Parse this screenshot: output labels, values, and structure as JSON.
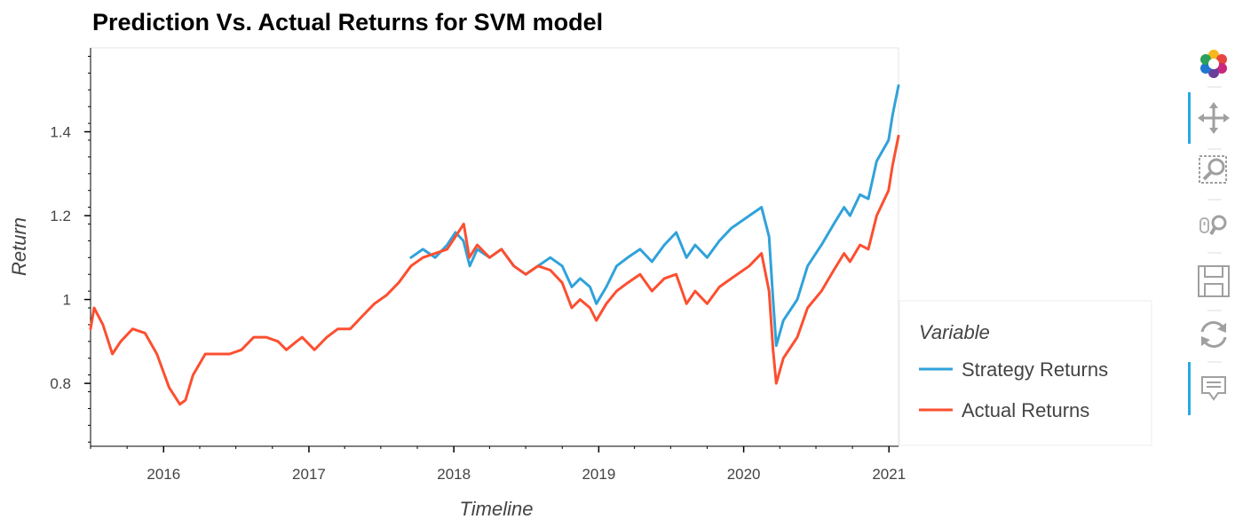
{
  "chart_data": {
    "type": "line",
    "title": "Prediction Vs. Actual Returns for SVM model",
    "xlabel": "Timeline",
    "ylabel": "Return",
    "x_range": [
      "2015-07-01",
      "2021-01-25"
    ],
    "ylim": [
      0.65,
      1.6
    ],
    "x_ticks": [
      {
        "date": "2016-01-01",
        "label": "2016"
      },
      {
        "date": "2017-01-01",
        "label": "2017"
      },
      {
        "date": "2018-01-01",
        "label": "2018"
      },
      {
        "date": "2019-01-01",
        "label": "2019"
      },
      {
        "date": "2020-01-01",
        "label": "2020"
      },
      {
        "date": "2021-01-01",
        "label": "2021"
      }
    ],
    "y_ticks": [
      {
        "value": 0.8,
        "label": "0.8"
      },
      {
        "value": 1.0,
        "label": "1"
      },
      {
        "value": 1.2,
        "label": "1.2"
      },
      {
        "value": 1.4,
        "label": "1.4"
      }
    ],
    "legend": {
      "title": "Variable",
      "position": "right"
    },
    "series": [
      {
        "name": "Strategy Returns",
        "color": "#30a2da",
        "points": [
          [
            "2017-09-15",
            1.1
          ],
          [
            "2017-10-15",
            1.12
          ],
          [
            "2017-11-15",
            1.1
          ],
          [
            "2017-12-15",
            1.13
          ],
          [
            "2018-01-05",
            1.16
          ],
          [
            "2018-01-25",
            1.14
          ],
          [
            "2018-02-10",
            1.08
          ],
          [
            "2018-03-01",
            1.12
          ],
          [
            "2018-04-01",
            1.1
          ],
          [
            "2018-05-01",
            1.12
          ],
          [
            "2018-06-01",
            1.08
          ],
          [
            "2018-07-01",
            1.06
          ],
          [
            "2018-08-01",
            1.08
          ],
          [
            "2018-09-01",
            1.1
          ],
          [
            "2018-10-01",
            1.08
          ],
          [
            "2018-10-25",
            1.03
          ],
          [
            "2018-11-15",
            1.05
          ],
          [
            "2018-12-10",
            1.03
          ],
          [
            "2018-12-26",
            0.99
          ],
          [
            "2019-01-20",
            1.03
          ],
          [
            "2019-02-15",
            1.08
          ],
          [
            "2019-03-15",
            1.1
          ],
          [
            "2019-04-15",
            1.12
          ],
          [
            "2019-05-15",
            1.09
          ],
          [
            "2019-06-15",
            1.13
          ],
          [
            "2019-07-15",
            1.16
          ],
          [
            "2019-08-10",
            1.1
          ],
          [
            "2019-09-01",
            1.13
          ],
          [
            "2019-10-01",
            1.1
          ],
          [
            "2019-11-01",
            1.14
          ],
          [
            "2019-12-01",
            1.17
          ],
          [
            "2020-01-15",
            1.2
          ],
          [
            "2020-02-15",
            1.22
          ],
          [
            "2020-03-05",
            1.15
          ],
          [
            "2020-03-15",
            1.0
          ],
          [
            "2020-03-23",
            0.89
          ],
          [
            "2020-04-10",
            0.95
          ],
          [
            "2020-05-15",
            1.0
          ],
          [
            "2020-06-10",
            1.08
          ],
          [
            "2020-07-15",
            1.13
          ],
          [
            "2020-08-15",
            1.18
          ],
          [
            "2020-09-10",
            1.22
          ],
          [
            "2020-09-25",
            1.2
          ],
          [
            "2020-10-20",
            1.25
          ],
          [
            "2020-11-10",
            1.24
          ],
          [
            "2020-12-01",
            1.33
          ],
          [
            "2020-12-31",
            1.38
          ],
          [
            "2021-01-10",
            1.44
          ],
          [
            "2021-01-25",
            1.51
          ]
        ]
      },
      {
        "name": "Actual Returns",
        "color": "#fc4f30",
        "points": [
          [
            "2015-07-01",
            0.93
          ],
          [
            "2015-07-10",
            0.98
          ],
          [
            "2015-08-01",
            0.94
          ],
          [
            "2015-08-25",
            0.87
          ],
          [
            "2015-09-15",
            0.9
          ],
          [
            "2015-10-15",
            0.93
          ],
          [
            "2015-11-15",
            0.92
          ],
          [
            "2015-12-15",
            0.87
          ],
          [
            "2016-01-15",
            0.79
          ],
          [
            "2016-02-11",
            0.75
          ],
          [
            "2016-02-25",
            0.76
          ],
          [
            "2016-03-15",
            0.82
          ],
          [
            "2016-04-15",
            0.87
          ],
          [
            "2016-05-15",
            0.87
          ],
          [
            "2016-06-15",
            0.87
          ],
          [
            "2016-07-15",
            0.88
          ],
          [
            "2016-08-15",
            0.91
          ],
          [
            "2016-09-15",
            0.91
          ],
          [
            "2016-10-15",
            0.9
          ],
          [
            "2016-11-05",
            0.88
          ],
          [
            "2016-12-01",
            0.9
          ],
          [
            "2016-12-15",
            0.91
          ],
          [
            "2017-01-15",
            0.88
          ],
          [
            "2017-02-15",
            0.91
          ],
          [
            "2017-03-15",
            0.93
          ],
          [
            "2017-04-15",
            0.93
          ],
          [
            "2017-05-15",
            0.96
          ],
          [
            "2017-06-15",
            0.99
          ],
          [
            "2017-07-15",
            1.01
          ],
          [
            "2017-08-15",
            1.04
          ],
          [
            "2017-09-15",
            1.08
          ],
          [
            "2017-10-15",
            1.1
          ],
          [
            "2017-11-15",
            1.11
          ],
          [
            "2017-12-15",
            1.12
          ],
          [
            "2018-01-26",
            1.18
          ],
          [
            "2018-02-09",
            1.1
          ],
          [
            "2018-03-01",
            1.13
          ],
          [
            "2018-04-01",
            1.1
          ],
          [
            "2018-05-01",
            1.12
          ],
          [
            "2018-06-01",
            1.08
          ],
          [
            "2018-07-01",
            1.06
          ],
          [
            "2018-08-01",
            1.08
          ],
          [
            "2018-09-01",
            1.07
          ],
          [
            "2018-10-01",
            1.04
          ],
          [
            "2018-10-25",
            0.98
          ],
          [
            "2018-11-15",
            1.0
          ],
          [
            "2018-12-10",
            0.98
          ],
          [
            "2018-12-26",
            0.95
          ],
          [
            "2019-01-20",
            0.99
          ],
          [
            "2019-02-15",
            1.02
          ],
          [
            "2019-03-15",
            1.04
          ],
          [
            "2019-04-15",
            1.06
          ],
          [
            "2019-05-15",
            1.02
          ],
          [
            "2019-06-15",
            1.05
          ],
          [
            "2019-07-15",
            1.06
          ],
          [
            "2019-08-10",
            0.99
          ],
          [
            "2019-09-01",
            1.02
          ],
          [
            "2019-10-01",
            0.99
          ],
          [
            "2019-11-01",
            1.03
          ],
          [
            "2019-12-01",
            1.05
          ],
          [
            "2020-01-15",
            1.08
          ],
          [
            "2020-02-15",
            1.11
          ],
          [
            "2020-03-05",
            1.02
          ],
          [
            "2020-03-15",
            0.88
          ],
          [
            "2020-03-23",
            0.8
          ],
          [
            "2020-04-10",
            0.86
          ],
          [
            "2020-05-15",
            0.91
          ],
          [
            "2020-06-10",
            0.98
          ],
          [
            "2020-07-15",
            1.02
          ],
          [
            "2020-08-15",
            1.07
          ],
          [
            "2020-09-10",
            1.11
          ],
          [
            "2020-09-25",
            1.09
          ],
          [
            "2020-10-20",
            1.13
          ],
          [
            "2020-11-10",
            1.12
          ],
          [
            "2020-12-01",
            1.2
          ],
          [
            "2020-12-31",
            1.26
          ],
          [
            "2021-01-10",
            1.32
          ],
          [
            "2021-01-25",
            1.39
          ]
        ]
      }
    ]
  },
  "toolbar": {
    "tools": [
      {
        "name": "bokeh-logo",
        "label": "Bokeh",
        "active": false
      },
      {
        "name": "pan-tool",
        "label": "Pan",
        "active": true
      },
      {
        "name": "box-zoom-tool",
        "label": "Box Zoom",
        "active": false
      },
      {
        "name": "wheel-zoom-tool",
        "label": "Wheel Zoom",
        "active": false
      },
      {
        "name": "save-tool",
        "label": "Save",
        "active": false
      },
      {
        "name": "reset-tool",
        "label": "Reset",
        "active": false
      },
      {
        "name": "hover-tool",
        "label": "Hover",
        "active": true
      }
    ],
    "accent_color": "#26aae1",
    "icon_color": "#a0a0a0"
  }
}
